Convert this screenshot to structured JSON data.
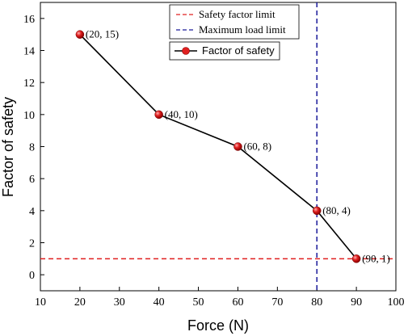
{
  "chart_data": {
    "type": "line",
    "xlabel": "Force (N)",
    "ylabel": "Factor of safety",
    "xlim": [
      10,
      100
    ],
    "ylim": [
      -1,
      17
    ],
    "x_ticks": [
      "10",
      "20",
      "30",
      "40",
      "50",
      "60",
      "70",
      "80",
      "90",
      "100"
    ],
    "y_ticks": [
      "0",
      "2",
      "4",
      "6",
      "8",
      "10",
      "12",
      "14",
      "16"
    ],
    "grid": false,
    "legend_position": "top-right",
    "series": [
      {
        "name": "Factor of safety",
        "color": "#000000",
        "marker_color": "#e02020",
        "x": [
          20,
          40,
          60,
          80,
          90
        ],
        "y": [
          15,
          10,
          8,
          4,
          1
        ],
        "point_labels": [
          "(20, 15)",
          "(40, 10)",
          "(60, 8)",
          "(80, 4)",
          "(90, 1)"
        ]
      }
    ],
    "reference_lines": [
      {
        "name": "Safety factor limit",
        "orientation": "horizontal",
        "value": 1,
        "color": "#e02020",
        "style": "dashed"
      },
      {
        "name": "Maximum load limit",
        "orientation": "vertical",
        "value": 80,
        "color": "#1a1a9a",
        "style": "dashed"
      }
    ]
  }
}
